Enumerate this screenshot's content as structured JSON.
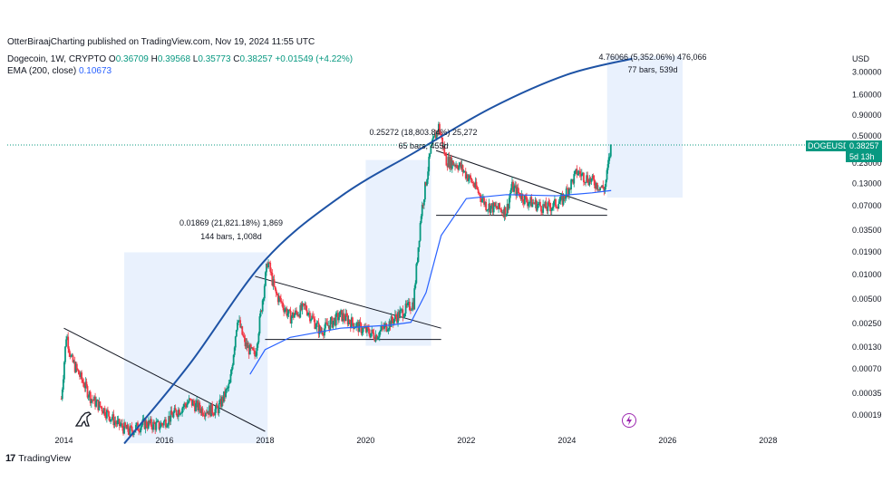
{
  "header": {
    "published": "OtterBiraajCharting published on TradingView.com, Nov 19, 2024 11:55 UTC"
  },
  "legend": {
    "symbol": "Dogecoin, 1W, CRYPTO",
    "o_label": "O",
    "o": "0.36709",
    "h_label": "H",
    "h": "0.39568",
    "l_label": "L",
    "l": "0.35773",
    "c_label": "C",
    "c": "0.38257",
    "change": "+0.01549 (+4.22%)",
    "ema_label": "EMA (200, close)",
    "ema_value": "0.10673"
  },
  "price_axis": {
    "currency": "USD",
    "ticks": [
      "3.00000",
      "1.60000",
      "0.90000",
      "0.50000",
      "0.23000",
      "0.13000",
      "0.07000",
      "0.03500",
      "0.01900",
      "0.01000",
      "0.00500",
      "0.00250",
      "0.00130",
      "0.00070",
      "0.00035",
      "0.00019"
    ],
    "last_price_tag": {
      "ticker": "DOGEUSD",
      "price": "0.38257",
      "countdown": "5d 13h"
    }
  },
  "time_axis": {
    "ticks": [
      "2014",
      "2016",
      "2018",
      "2020",
      "2022",
      "2024",
      "2026",
      "2028"
    ]
  },
  "annotations": [
    {
      "line1": "0.01869 (21,821.18%) 1,869",
      "line2": "144 bars, 1,008d"
    },
    {
      "line1": "0.25272 (18,803.84%) 25,272",
      "line2": "65 bars, 455d"
    },
    {
      "line1": "4.76066 (5,352.06%) 476,066",
      "line2": "77 bars, 539d"
    }
  ],
  "footer": {
    "brand": "TradingView"
  },
  "colors": {
    "up": "#089981",
    "down": "#f23645",
    "ema": "#2962ff",
    "curve": "#1e53a5",
    "range_box": "#e3edfc",
    "trendline": "#131722"
  },
  "chart_data": {
    "type": "candlestick",
    "title": "Dogecoin, 1W, CRYPTO",
    "y_scale": "log",
    "ylim": [
      0.00012,
      5.5
    ],
    "xlim": [
      2013.0,
      2029.4
    ],
    "ylabel": "USD",
    "price_path": [
      {
        "x": 2013.95,
        "y": 0.0003
      },
      {
        "x": 2014.05,
        "y": 0.0019
      },
      {
        "x": 2014.15,
        "y": 0.0009
      },
      {
        "x": 2014.3,
        "y": 0.0006
      },
      {
        "x": 2014.55,
        "y": 0.0003
      },
      {
        "x": 2014.8,
        "y": 0.00022
      },
      {
        "x": 2015.05,
        "y": 0.00015
      },
      {
        "x": 2015.3,
        "y": 0.00012
      },
      {
        "x": 2015.6,
        "y": 0.00015
      },
      {
        "x": 2015.9,
        "y": 0.00014
      },
      {
        "x": 2016.2,
        "y": 0.0002
      },
      {
        "x": 2016.5,
        "y": 0.00028
      },
      {
        "x": 2016.75,
        "y": 0.00022
      },
      {
        "x": 2017.05,
        "y": 0.00022
      },
      {
        "x": 2017.3,
        "y": 0.00045
      },
      {
        "x": 2017.45,
        "y": 0.003
      },
      {
        "x": 2017.6,
        "y": 0.0014
      },
      {
        "x": 2017.8,
        "y": 0.001
      },
      {
        "x": 2017.95,
        "y": 0.005
      },
      {
        "x": 2018.05,
        "y": 0.015
      },
      {
        "x": 2018.2,
        "y": 0.006
      },
      {
        "x": 2018.5,
        "y": 0.003
      },
      {
        "x": 2018.8,
        "y": 0.004
      },
      {
        "x": 2019.1,
        "y": 0.002
      },
      {
        "x": 2019.5,
        "y": 0.0032
      },
      {
        "x": 2019.9,
        "y": 0.0022
      },
      {
        "x": 2020.2,
        "y": 0.0018
      },
      {
        "x": 2020.6,
        "y": 0.003
      },
      {
        "x": 2020.95,
        "y": 0.0045
      },
      {
        "x": 2021.1,
        "y": 0.055
      },
      {
        "x": 2021.3,
        "y": 0.35
      },
      {
        "x": 2021.45,
        "y": 0.65
      },
      {
        "x": 2021.6,
        "y": 0.25
      },
      {
        "x": 2021.85,
        "y": 0.22
      },
      {
        "x": 2022.1,
        "y": 0.14
      },
      {
        "x": 2022.4,
        "y": 0.07
      },
      {
        "x": 2022.8,
        "y": 0.06
      },
      {
        "x": 2022.9,
        "y": 0.12
      },
      {
        "x": 2023.2,
        "y": 0.08
      },
      {
        "x": 2023.6,
        "y": 0.065
      },
      {
        "x": 2023.9,
        "y": 0.08
      },
      {
        "x": 2024.2,
        "y": 0.18
      },
      {
        "x": 2024.5,
        "y": 0.14
      },
      {
        "x": 2024.75,
        "y": 0.11
      },
      {
        "x": 2024.88,
        "y": 0.38257
      }
    ],
    "ema_200": [
      {
        "x": 2017.7,
        "y": 0.0006
      },
      {
        "x": 2018.0,
        "y": 0.0012
      },
      {
        "x": 2018.5,
        "y": 0.0017
      },
      {
        "x": 2019.5,
        "y": 0.0022
      },
      {
        "x": 2020.5,
        "y": 0.0024
      },
      {
        "x": 2020.9,
        "y": 0.0026
      },
      {
        "x": 2021.2,
        "y": 0.006
      },
      {
        "x": 2021.5,
        "y": 0.03
      },
      {
        "x": 2022.0,
        "y": 0.085
      },
      {
        "x": 2022.8,
        "y": 0.095
      },
      {
        "x": 2023.8,
        "y": 0.092
      },
      {
        "x": 2024.5,
        "y": 0.1
      },
      {
        "x": 2024.88,
        "y": 0.10673
      }
    ],
    "range_measures": [
      {
        "x_start": 2015.2,
        "x_end": 2018.05,
        "y_low": 8.56e-05,
        "y_high": 0.01869
      },
      {
        "x_start": 2020.0,
        "x_end": 2021.3,
        "y_low": 0.00134,
        "y_high": 0.25272
      },
      {
        "x_start": 2024.8,
        "x_end": 2026.3,
        "y_low": 0.0874,
        "y_high": 4.76066
      }
    ],
    "trendlines": [
      {
        "x1": 2014.0,
        "y1": 0.0022,
        "x2": 2018.0,
        "y2": 0.00012
      },
      {
        "x1": 2017.8,
        "y1": 0.0095,
        "x2": 2021.5,
        "y2": 0.0022
      },
      {
        "x1": 2018.0,
        "y1": 0.0016,
        "x2": 2021.5,
        "y2": 0.0016
      },
      {
        "x1": 2021.4,
        "y1": 0.33,
        "x2": 2024.8,
        "y2": 0.062
      },
      {
        "x1": 2021.4,
        "y1": 0.053,
        "x2": 2024.8,
        "y2": 0.053
      }
    ],
    "arc": [
      {
        "x": 2015.2,
        "y": 8.5e-05
      },
      {
        "x": 2016.5,
        "y": 0.0008
      },
      {
        "x": 2018.0,
        "y": 0.015
      },
      {
        "x": 2019.5,
        "y": 0.09
      },
      {
        "x": 2021.0,
        "y": 0.32
      },
      {
        "x": 2022.5,
        "y": 1.1
      },
      {
        "x": 2024.0,
        "y": 2.8
      },
      {
        "x": 2025.3,
        "y": 4.4
      }
    ]
  }
}
